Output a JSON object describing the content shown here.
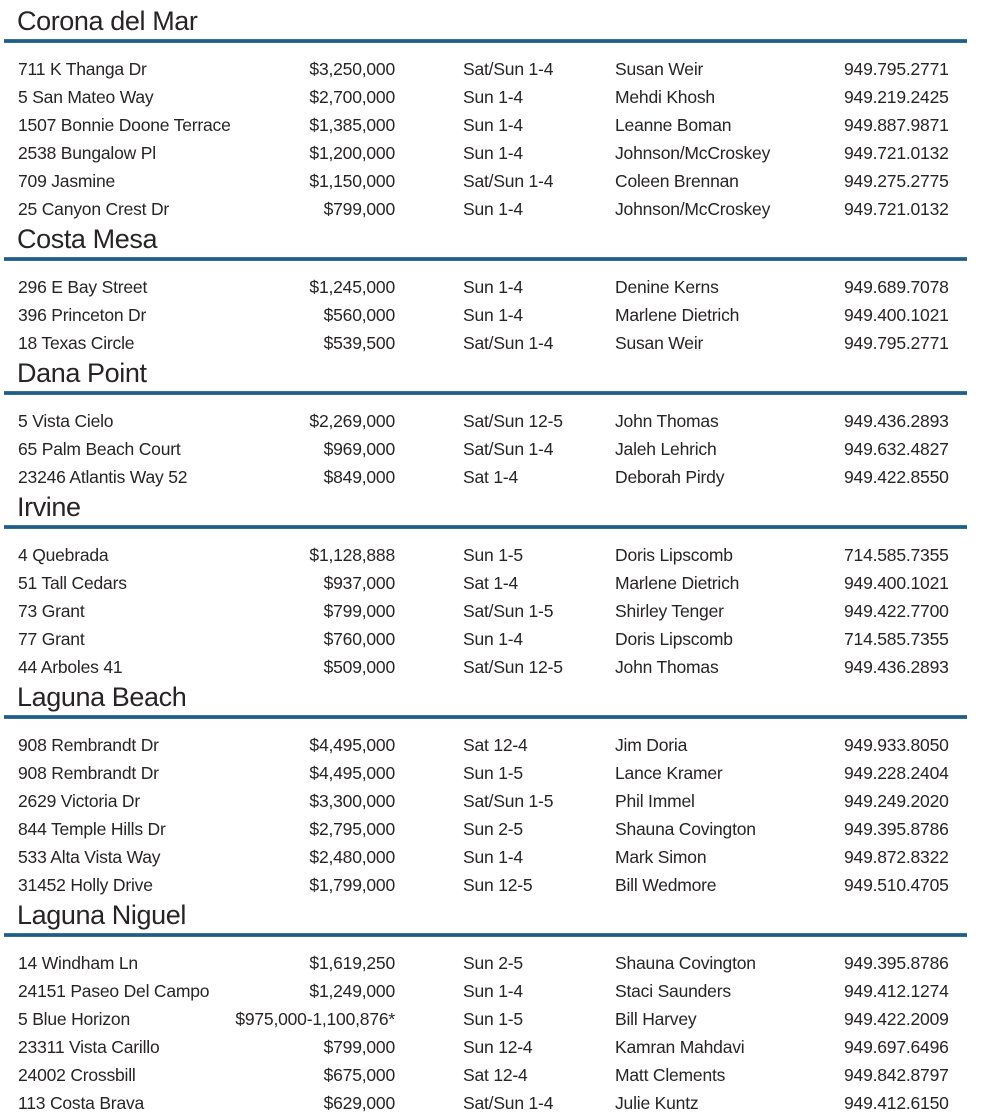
{
  "colors": {
    "accent_rule": "#1f5c87",
    "text": "#282425"
  },
  "sections": [
    {
      "city": "Corona del Mar",
      "listings": [
        {
          "address": "711 K Thanga Dr",
          "price": "$3,250,000",
          "time": "Sat/Sun 1-4",
          "agent": "Susan Weir",
          "phone": "949.795.2771"
        },
        {
          "address": "5 San Mateo Way",
          "price": "$2,700,000",
          "time": "Sun 1-4",
          "agent": "Mehdi Khosh",
          "phone": "949.219.2425"
        },
        {
          "address": "1507 Bonnie Doone Terrace",
          "price": "$1,385,000",
          "time": "Sun 1-4",
          "agent": "Leanne Boman",
          "phone": "949.887.9871"
        },
        {
          "address": "2538 Bungalow Pl",
          "price": "$1,200,000",
          "time": "Sun 1-4",
          "agent": "Johnson/McCroskey",
          "phone": "949.721.0132"
        },
        {
          "address": "709 Jasmine",
          "price": "$1,150,000",
          "time": "Sat/Sun 1-4",
          "agent": "Coleen Brennan",
          "phone": "949.275.2775"
        },
        {
          "address": "25 Canyon Crest Dr",
          "price": "$799,000",
          "time": "Sun 1-4",
          "agent": "Johnson/McCroskey",
          "phone": "949.721.0132"
        }
      ]
    },
    {
      "city": "Costa Mesa",
      "listings": [
        {
          "address": "296 E Bay Street",
          "price": "$1,245,000",
          "time": "Sun 1-4",
          "agent": "Denine Kerns",
          "phone": "949.689.7078"
        },
        {
          "address": "396 Princeton Dr",
          "price": "$560,000",
          "time": "Sun 1-4",
          "agent": "Marlene Dietrich",
          "phone": "949.400.1021"
        },
        {
          "address": "18 Texas Circle",
          "price": "$539,500",
          "time": "Sat/Sun 1-4",
          "agent": "Susan Weir",
          "phone": "949.795.2771"
        }
      ]
    },
    {
      "city": "Dana Point",
      "listings": [
        {
          "address": "5 Vista Cielo",
          "price": "$2,269,000",
          "time": "Sat/Sun 12-5",
          "agent": "John Thomas",
          "phone": "949.436.2893"
        },
        {
          "address": "65 Palm Beach Court",
          "price": "$969,000",
          "time": "Sat/Sun 1-4",
          "agent": "Jaleh Lehrich",
          "phone": "949.632.4827"
        },
        {
          "address": "23246 Atlantis Way 52",
          "price": "$849,000",
          "time": "Sat 1-4",
          "agent": "Deborah Pirdy",
          "phone": "949.422.8550"
        }
      ]
    },
    {
      "city": "Irvine",
      "listings": [
        {
          "address": "4 Quebrada",
          "price": "$1,128,888",
          "time": "Sun 1-5",
          "agent": "Doris Lipscomb",
          "phone": "714.585.7355"
        },
        {
          "address": "51 Tall Cedars",
          "price": "$937,000",
          "time": "Sat 1-4",
          "agent": "Marlene Dietrich",
          "phone": "949.400.1021"
        },
        {
          "address": "73 Grant",
          "price": "$799,000",
          "time": "Sat/Sun 1-5",
          "agent": "Shirley Tenger",
          "phone": "949.422.7700"
        },
        {
          "address": "77 Grant",
          "price": "$760,000",
          "time": "Sun 1-4",
          "agent": "Doris Lipscomb",
          "phone": "714.585.7355"
        },
        {
          "address": "44 Arboles 41",
          "price": "$509,000",
          "time": "Sat/Sun 12-5",
          "agent": "John Thomas",
          "phone": "949.436.2893"
        }
      ]
    },
    {
      "city": "Laguna Beach",
      "listings": [
        {
          "address": "908 Rembrandt Dr",
          "price": "$4,495,000",
          "time": "Sat 12-4",
          "agent": "Jim Doria",
          "phone": "949.933.8050"
        },
        {
          "address": "908 Rembrandt Dr",
          "price": "$4,495,000",
          "time": "Sun 1-5",
          "agent": "Lance Kramer",
          "phone": "949.228.2404"
        },
        {
          "address": "2629 Victoria Dr",
          "price": "$3,300,000",
          "time": "Sat/Sun 1-5",
          "agent": "Phil Immel",
          "phone": "949.249.2020"
        },
        {
          "address": "844 Temple Hills Dr",
          "price": "$2,795,000",
          "time": "Sun 2-5",
          "agent": "Shauna Covington",
          "phone": "949.395.8786"
        },
        {
          "address": "533 Alta Vista Way",
          "price": "$2,480,000",
          "time": "Sun 1-4",
          "agent": "Mark Simon",
          "phone": "949.872.8322"
        },
        {
          "address": "31452 Holly Drive",
          "price": "$1,799,000",
          "time": "Sun 12-5",
          "agent": "Bill Wedmore",
          "phone": "949.510.4705"
        }
      ]
    },
    {
      "city": "Laguna Niguel",
      "listings": [
        {
          "address": "14 Windham Ln",
          "price": "$1,619,250",
          "time": "Sun 2-5",
          "agent": "Shauna Covington",
          "phone": "949.395.8786"
        },
        {
          "address": "24151 Paseo Del Campo",
          "price": "$1,249,000",
          "time": "Sun 1-4",
          "agent": "Staci Saunders",
          "phone": "949.412.1274"
        },
        {
          "address": "5 Blue Horizon",
          "price": "$975,000-1,100,876*",
          "time": "Sun 1-5",
          "agent": "Bill Harvey",
          "phone": "949.422.2009"
        },
        {
          "address": "23311 Vista Carillo",
          "price": "$799,000",
          "time": "Sun 12-4",
          "agent": "Kamran Mahdavi",
          "phone": "949.697.6496"
        },
        {
          "address": "24002 Crossbill",
          "price": "$675,000",
          "time": "Sat 12-4",
          "agent": "Matt Clements",
          "phone": "949.842.8797"
        },
        {
          "address": "113 Costa Brava",
          "price": "$629,000",
          "time": "Sat/Sun 1-4",
          "agent": "Julie Kuntz",
          "phone": "949.412.6150"
        }
      ]
    }
  ]
}
